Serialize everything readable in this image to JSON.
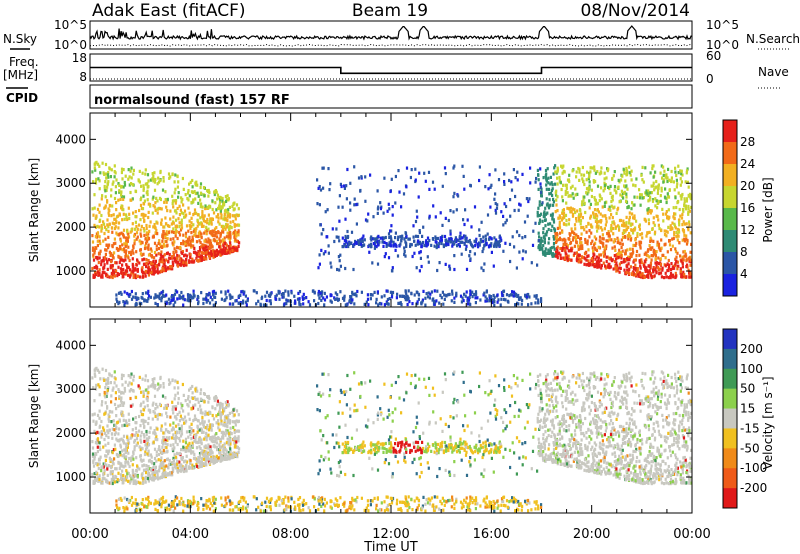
{
  "header": {
    "station": "Adak East (fitACF)",
    "beam": "Beam 19",
    "date": "08/Nov/2014",
    "cpid_program": "normalsound (fast) 157 RF"
  },
  "side_labels": {
    "nsky": "N.Sky",
    "freq": "Freq.",
    "freq_unit": "[MHz]",
    "cpid": "CPID",
    "nsearch": "N.Search",
    "nave": "Nave"
  },
  "noise_axis": {
    "lo_label": "10^0",
    "hi_label": "10^5"
  },
  "freq_axis": {
    "ticks": [
      8,
      18
    ]
  },
  "nave_axis": {
    "ticks": [
      0,
      60
    ]
  },
  "range_axis": {
    "label": "Slant Range [km]",
    "ticks": [
      1000,
      2000,
      3000,
      4000
    ],
    "ylim": [
      180,
      4600
    ]
  },
  "time_axis": {
    "label": "Time UT",
    "ticks": [
      "00:00",
      "04:00",
      "08:00",
      "12:00",
      "16:00",
      "20:00",
      "00:00"
    ]
  },
  "power_scale": {
    "label": "Power [dB]",
    "ticks": [
      4,
      8,
      12,
      16,
      20,
      24,
      28
    ],
    "colors": [
      "#1a22e0",
      "#2b56a6",
      "#2e8a74",
      "#58b84a",
      "#c7d630",
      "#f2b022",
      "#f26a18",
      "#e6201a"
    ]
  },
  "velocity_scale": {
    "label": "Velocity [m s⁻¹]",
    "ticks": [
      200,
      100,
      50,
      15,
      -15,
      -50,
      -100,
      -200
    ],
    "colors": [
      "#2233c0",
      "#2f6e8c",
      "#3f9a55",
      "#8cd04c",
      "#c8c8c0",
      "#f0c020",
      "#f08a18",
      "#ef5a18",
      "#e01818"
    ]
  },
  "chart_data": {
    "type": "heatmap",
    "freq_mhz": [
      [
        0,
        10,
        13
      ],
      [
        10,
        18,
        10
      ],
      [
        18,
        24,
        13
      ]
    ],
    "nave": [
      [
        0,
        24,
        0
      ]
    ],
    "echo_regions": [
      {
        "t0": 0.0,
        "t1": 2.0,
        "r0": 800,
        "r1": 3500,
        "kind": "morning_strong"
      },
      {
        "t0": 2.0,
        "t1": 5.9,
        "r0": 900,
        "r1": 2600,
        "kind": "morning_band"
      },
      {
        "t0": 10.0,
        "t1": 16.3,
        "r0": 1550,
        "r1": 1800,
        "kind": "weak_band"
      },
      {
        "t0": 14.5,
        "t1": 17.3,
        "r0": 2300,
        "r1": 3300,
        "kind": "weak_scatter"
      },
      {
        "t0": 1.0,
        "t1": 18.0,
        "r0": 200,
        "r1": 550,
        "kind": "ground_low"
      },
      {
        "t0": 17.8,
        "t1": 24.0,
        "r0": 800,
        "r1": 3500,
        "kind": "evening_strong"
      }
    ]
  }
}
